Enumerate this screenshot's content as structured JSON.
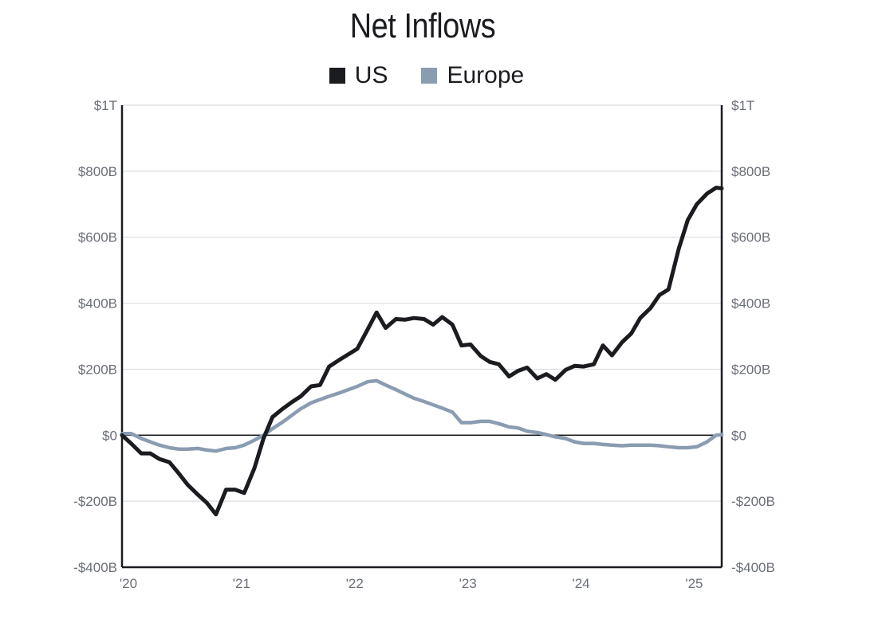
{
  "chart_data": {
    "type": "line",
    "title": "Net Inflows",
    "xlabel": "",
    "ylabel": "",
    "ylim": [
      -400,
      1000
    ],
    "y_unit": "billions USD",
    "y_ticks": [
      1000,
      800,
      600,
      400,
      200,
      0,
      -200,
      -400
    ],
    "y_tick_labels": [
      "$1T",
      "$800B",
      "$600B",
      "$400B",
      "$200B",
      "$0",
      "-$200B",
      "-$400B"
    ],
    "x_ticks": [
      2020,
      2021,
      2022,
      2023,
      2024,
      2025
    ],
    "x_tick_labels": [
      "'20",
      "'21",
      "'22",
      "'23",
      "'24",
      "'25"
    ],
    "xlim": [
      2020.0,
      2025.3
    ],
    "grid": true,
    "legend_position": "top-center",
    "series": [
      {
        "name": "US",
        "color": "#1b1c20",
        "points": [
          [
            2020.0,
            0
          ],
          [
            2020.08,
            -25
          ],
          [
            2020.17,
            -55
          ],
          [
            2020.25,
            -55
          ],
          [
            2020.33,
            -72
          ],
          [
            2020.42,
            -82
          ],
          [
            2020.5,
            -115
          ],
          [
            2020.58,
            -150
          ],
          [
            2020.67,
            -180
          ],
          [
            2020.75,
            -205
          ],
          [
            2020.83,
            -240
          ],
          [
            2020.92,
            -165
          ],
          [
            2021.0,
            -165
          ],
          [
            2021.08,
            -175
          ],
          [
            2021.17,
            -100
          ],
          [
            2021.25,
            -10
          ],
          [
            2021.33,
            55
          ],
          [
            2021.42,
            80
          ],
          [
            2021.5,
            100
          ],
          [
            2021.58,
            118
          ],
          [
            2021.67,
            148
          ],
          [
            2021.75,
            152
          ],
          [
            2021.83,
            208
          ],
          [
            2021.92,
            228
          ],
          [
            2022.0,
            245
          ],
          [
            2022.08,
            262
          ],
          [
            2022.17,
            320
          ],
          [
            2022.25,
            372
          ],
          [
            2022.33,
            325
          ],
          [
            2022.42,
            352
          ],
          [
            2022.5,
            350
          ],
          [
            2022.58,
            355
          ],
          [
            2022.67,
            352
          ],
          [
            2022.75,
            335
          ],
          [
            2022.83,
            358
          ],
          [
            2022.92,
            335
          ],
          [
            2023.0,
            272
          ],
          [
            2023.08,
            275
          ],
          [
            2023.17,
            240
          ],
          [
            2023.25,
            222
          ],
          [
            2023.33,
            215
          ],
          [
            2023.42,
            178
          ],
          [
            2023.5,
            195
          ],
          [
            2023.58,
            205
          ],
          [
            2023.67,
            172
          ],
          [
            2023.75,
            185
          ],
          [
            2023.83,
            168
          ],
          [
            2023.92,
            198
          ],
          [
            2024.0,
            210
          ],
          [
            2024.08,
            208
          ],
          [
            2024.17,
            215
          ],
          [
            2024.25,
            272
          ],
          [
            2024.33,
            242
          ],
          [
            2024.42,
            282
          ],
          [
            2024.5,
            308
          ],
          [
            2024.58,
            355
          ],
          [
            2024.67,
            385
          ],
          [
            2024.75,
            425
          ],
          [
            2024.83,
            442
          ],
          [
            2024.92,
            565
          ],
          [
            2025.0,
            652
          ],
          [
            2025.08,
            700
          ],
          [
            2025.17,
            732
          ],
          [
            2025.25,
            750
          ],
          [
            2025.3,
            748
          ]
        ]
      },
      {
        "name": "Europe",
        "color": "#8a9cb1",
        "points": [
          [
            2020.0,
            5
          ],
          [
            2020.08,
            5
          ],
          [
            2020.17,
            -10
          ],
          [
            2020.25,
            -20
          ],
          [
            2020.33,
            -30
          ],
          [
            2020.42,
            -38
          ],
          [
            2020.5,
            -42
          ],
          [
            2020.58,
            -42
          ],
          [
            2020.67,
            -40
          ],
          [
            2020.75,
            -45
          ],
          [
            2020.83,
            -48
          ],
          [
            2020.92,
            -40
          ],
          [
            2021.0,
            -38
          ],
          [
            2021.08,
            -30
          ],
          [
            2021.17,
            -15
          ],
          [
            2021.25,
            0
          ],
          [
            2021.33,
            20
          ],
          [
            2021.42,
            40
          ],
          [
            2021.5,
            60
          ],
          [
            2021.58,
            80
          ],
          [
            2021.67,
            98
          ],
          [
            2021.75,
            108
          ],
          [
            2021.83,
            118
          ],
          [
            2021.92,
            128
          ],
          [
            2022.0,
            138
          ],
          [
            2022.08,
            148
          ],
          [
            2022.17,
            162
          ],
          [
            2022.25,
            165
          ],
          [
            2022.33,
            152
          ],
          [
            2022.42,
            138
          ],
          [
            2022.5,
            125
          ],
          [
            2022.58,
            112
          ],
          [
            2022.67,
            102
          ],
          [
            2022.75,
            92
          ],
          [
            2022.83,
            82
          ],
          [
            2022.92,
            70
          ],
          [
            2023.0,
            38
          ],
          [
            2023.08,
            38
          ],
          [
            2023.17,
            42
          ],
          [
            2023.25,
            42
          ],
          [
            2023.33,
            35
          ],
          [
            2023.42,
            25
          ],
          [
            2023.5,
            22
          ],
          [
            2023.58,
            12
          ],
          [
            2023.67,
            8
          ],
          [
            2023.75,
            2
          ],
          [
            2023.83,
            -5
          ],
          [
            2023.92,
            -10
          ],
          [
            2024.0,
            -20
          ],
          [
            2024.08,
            -25
          ],
          [
            2024.17,
            -25
          ],
          [
            2024.25,
            -28
          ],
          [
            2024.33,
            -30
          ],
          [
            2024.42,
            -32
          ],
          [
            2024.5,
            -30
          ],
          [
            2024.58,
            -30
          ],
          [
            2024.67,
            -30
          ],
          [
            2024.75,
            -32
          ],
          [
            2024.83,
            -35
          ],
          [
            2024.92,
            -38
          ],
          [
            2025.0,
            -38
          ],
          [
            2025.08,
            -35
          ],
          [
            2025.17,
            -20
          ],
          [
            2025.25,
            0
          ],
          [
            2025.3,
            2
          ]
        ]
      }
    ]
  }
}
